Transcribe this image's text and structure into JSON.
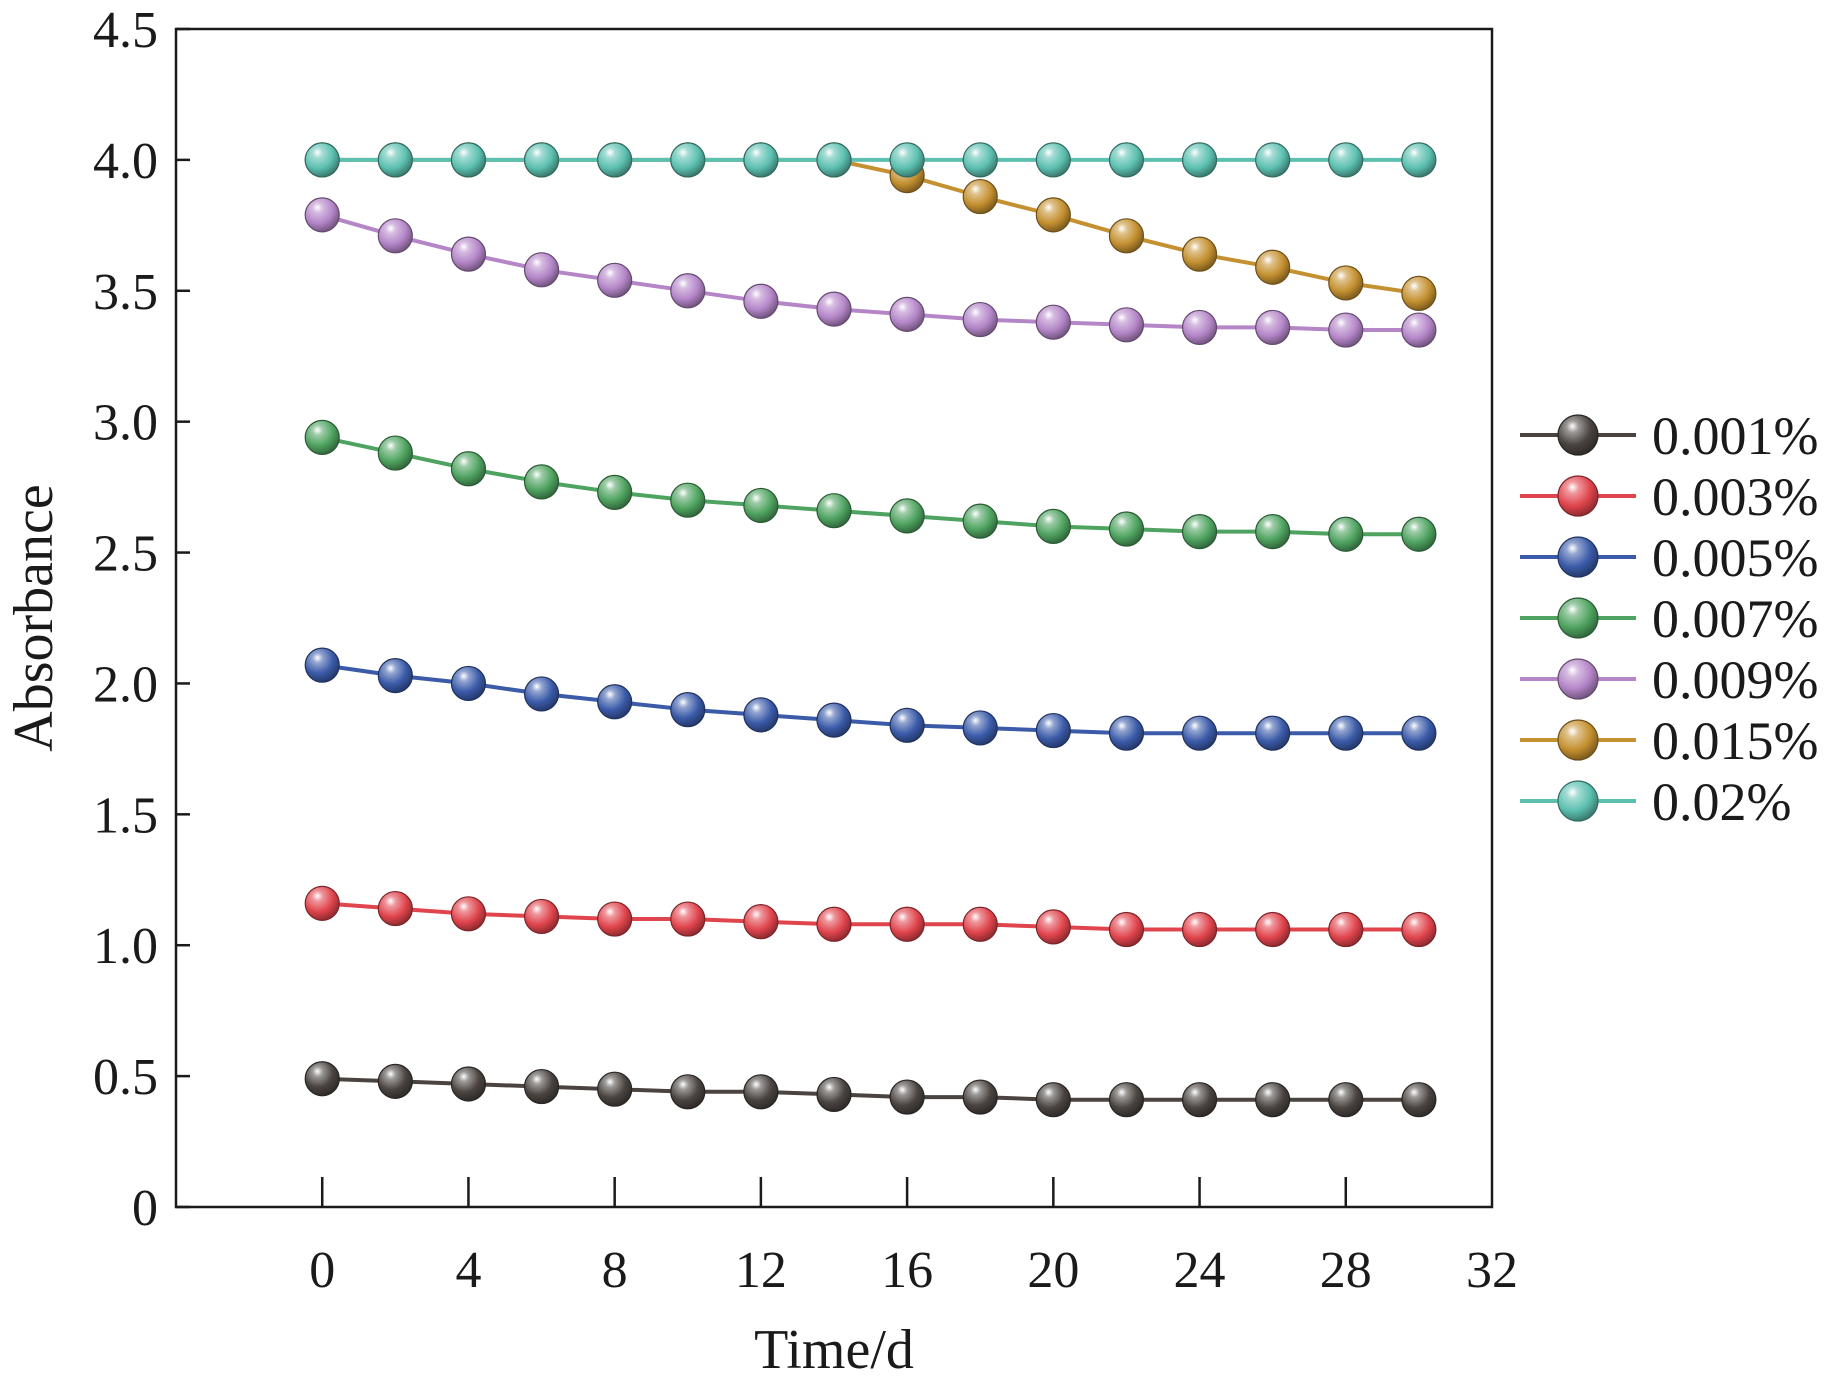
{
  "chart_data": {
    "type": "line",
    "title": "",
    "xlabel": "Time/d",
    "ylabel": "Absorbance",
    "xlim": [
      -4,
      32
    ],
    "ylim": [
      0,
      4.5
    ],
    "xticks": [
      0,
      4,
      8,
      12,
      16,
      20,
      24,
      28,
      32
    ],
    "xtick_labels": [
      "0",
      "4",
      "8",
      "12",
      "16",
      "20",
      "24",
      "28",
      "32"
    ],
    "yticks": [
      0,
      0.5,
      1.0,
      1.5,
      2.0,
      2.5,
      3.0,
      3.5,
      4.0,
      4.5
    ],
    "ytick_labels": [
      "0",
      "0.5",
      "1.0",
      "1.5",
      "2.0",
      "2.5",
      "3.0",
      "3.5",
      "4.0",
      "4.5"
    ],
    "grid": false,
    "legend_position": "right",
    "x": [
      0,
      2,
      4,
      6,
      8,
      10,
      12,
      14,
      16,
      18,
      20,
      22,
      24,
      26,
      28,
      30
    ],
    "series": [
      {
        "name": "0.001%",
        "color": "#4a4340",
        "values": [
          0.49,
          0.48,
          0.47,
          0.46,
          0.45,
          0.44,
          0.44,
          0.43,
          0.42,
          0.42,
          0.41,
          0.41,
          0.41,
          0.41,
          0.41,
          0.41
        ]
      },
      {
        "name": "0.003%",
        "color": "#e0444c",
        "values": [
          1.16,
          1.14,
          1.12,
          1.11,
          1.1,
          1.1,
          1.09,
          1.08,
          1.08,
          1.08,
          1.07,
          1.06,
          1.06,
          1.06,
          1.06,
          1.06
        ]
      },
      {
        "name": "0.005%",
        "color": "#3b5ba9",
        "values": [
          2.07,
          2.03,
          2.0,
          1.96,
          1.93,
          1.9,
          1.88,
          1.86,
          1.84,
          1.83,
          1.82,
          1.81,
          1.81,
          1.81,
          1.81,
          1.81
        ]
      },
      {
        "name": "0.007%",
        "color": "#4fa360",
        "values": [
          2.94,
          2.88,
          2.82,
          2.77,
          2.73,
          2.7,
          2.68,
          2.66,
          2.64,
          2.62,
          2.6,
          2.59,
          2.58,
          2.58,
          2.57,
          2.57
        ]
      },
      {
        "name": "0.009%",
        "color": "#b486c8",
        "values": [
          3.79,
          3.71,
          3.64,
          3.58,
          3.54,
          3.5,
          3.46,
          3.43,
          3.41,
          3.39,
          3.38,
          3.37,
          3.36,
          3.36,
          3.35,
          3.35
        ]
      },
      {
        "name": "0.015%",
        "color": "#c49030",
        "values": [
          4.0,
          4.0,
          4.0,
          4.0,
          4.0,
          4.0,
          4.0,
          4.0,
          3.94,
          3.86,
          3.79,
          3.71,
          3.64,
          3.59,
          3.53,
          3.49
        ]
      },
      {
        "name": "0.02%",
        "color": "#5cc0b0",
        "values": [
          4.0,
          4.0,
          4.0,
          4.0,
          4.0,
          4.0,
          4.0,
          4.0,
          4.0,
          4.0,
          4.0,
          4.0,
          4.0,
          4.0,
          4.0,
          4.0
        ]
      }
    ]
  }
}
